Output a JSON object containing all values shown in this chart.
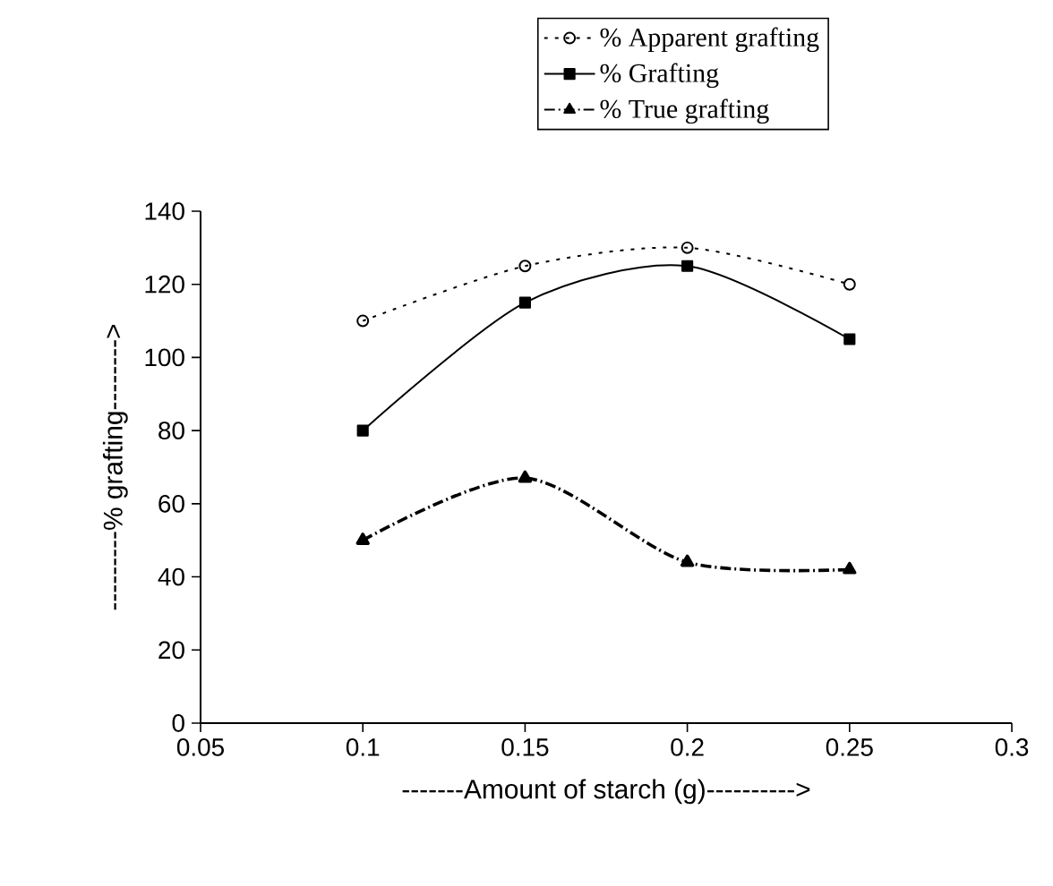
{
  "chart_data": {
    "type": "line",
    "xlabel": "-------Amount of starch (g)---------->",
    "ylabel": "---------% grafting-------->",
    "x": [
      0.1,
      0.15,
      0.2,
      0.25
    ],
    "series": [
      {
        "name": "% Apparent grafting",
        "color": "#000000",
        "values": [
          110,
          125,
          130,
          120
        ],
        "marker": "circle",
        "line_style": "dotted"
      },
      {
        "name": "% Grafting",
        "color": "#000000",
        "values": [
          80,
          115,
          125,
          105
        ],
        "marker": "square",
        "line_style": "solid"
      },
      {
        "name": "% True grafting",
        "color": "#000000",
        "values": [
          50,
          67,
          44,
          42
        ],
        "marker": "triangle",
        "line_style": "dashed"
      }
    ],
    "xlim": [
      0.05,
      0.3
    ],
    "xticks": [
      0.05,
      0.1,
      0.15,
      0.2,
      0.25,
      0.3
    ],
    "ylim": [
      0,
      140
    ],
    "yticks": [
      0,
      20,
      40,
      60,
      80,
      100,
      120,
      140
    ],
    "grid": false,
    "legend": "top right"
  }
}
